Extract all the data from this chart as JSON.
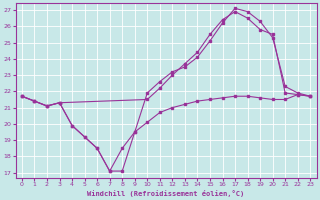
{
  "xlabel": "Windchill (Refroidissement éolien,°C)",
  "bg_color": "#c8e8e8",
  "line_color": "#993399",
  "grid_color": "#b0d0d0",
  "xlim": [
    -0.5,
    23.5
  ],
  "ylim": [
    16.7,
    27.4
  ],
  "yticks": [
    17,
    18,
    19,
    20,
    21,
    22,
    23,
    24,
    25,
    26,
    27
  ],
  "xticks": [
    0,
    1,
    2,
    3,
    4,
    5,
    6,
    7,
    8,
    9,
    10,
    11,
    12,
    13,
    14,
    15,
    16,
    17,
    18,
    19,
    20,
    21,
    22,
    23
  ],
  "line1_x": [
    0,
    1,
    2,
    3,
    10,
    11,
    12,
    13,
    14,
    15,
    16,
    17,
    18,
    19,
    20,
    21,
    22,
    23
  ],
  "line1_y": [
    21.7,
    21.4,
    21.1,
    21.3,
    21.5,
    22.2,
    23.0,
    23.7,
    24.4,
    25.5,
    26.4,
    26.9,
    26.5,
    25.8,
    25.5,
    21.9,
    21.8,
    21.7
  ],
  "line2_x": [
    0,
    1,
    2,
    3,
    4,
    5,
    6,
    7,
    8,
    9,
    10,
    11,
    12,
    13,
    14,
    15,
    16,
    17,
    18,
    19,
    20,
    21,
    22,
    23
  ],
  "line2_y": [
    21.7,
    21.4,
    21.1,
    21.3,
    19.9,
    19.2,
    18.5,
    17.1,
    18.5,
    19.5,
    21.9,
    22.6,
    23.2,
    23.5,
    24.1,
    25.1,
    26.2,
    27.1,
    26.9,
    26.3,
    25.3,
    22.3,
    21.9,
    21.7
  ],
  "line3_x": [
    0,
    1,
    2,
    3,
    4,
    5,
    6,
    7,
    8,
    9,
    10,
    11,
    12,
    13,
    14,
    15,
    16,
    17,
    18,
    19,
    20,
    21,
    22,
    23
  ],
  "line3_y": [
    21.7,
    21.4,
    21.1,
    21.3,
    19.9,
    19.2,
    18.5,
    17.1,
    17.1,
    19.5,
    20.1,
    20.7,
    21.0,
    21.2,
    21.4,
    21.5,
    21.6,
    21.7,
    21.7,
    21.6,
    21.5,
    21.5,
    21.8,
    21.7
  ]
}
